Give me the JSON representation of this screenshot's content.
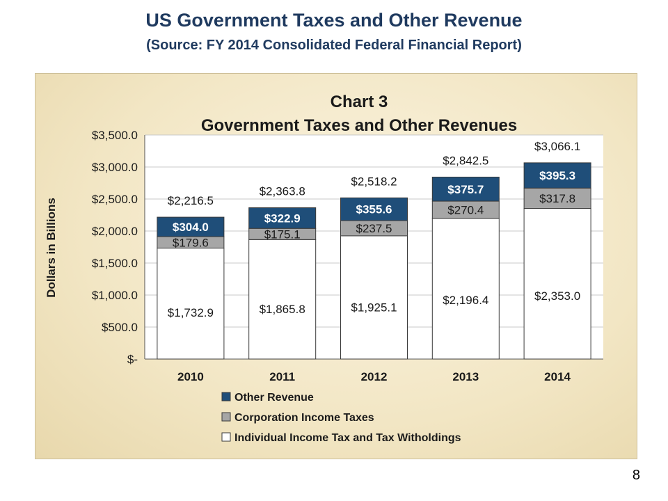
{
  "slide": {
    "title": "US Government Taxes and Other Revenue",
    "subtitle": "(Source: FY 2014 Consolidated Federal Financial Report)",
    "page_number": "8"
  },
  "colors": {
    "other": "#1f4e79",
    "corp": "#a6a6a6",
    "indiv": "#ffffff",
    "title_text": "#1f3a5f"
  },
  "chart_data": {
    "type": "bar",
    "stacked": true,
    "title": "Chart 3",
    "subtitle": "Government Taxes and Other Revenues",
    "ylabel": "Dollars in Billions",
    "xlabel": "",
    "ylim": [
      0,
      3500
    ],
    "yticks": [
      "$-",
      "$500.0",
      "$1,000.0",
      "$1,500.0",
      "$2,000.0",
      "$2,500.0",
      "$3,000.0",
      "$3,500.0"
    ],
    "ytick_values": [
      0,
      500,
      1000,
      1500,
      2000,
      2500,
      3000,
      3500
    ],
    "grid": true,
    "legend": "bottom",
    "categories": [
      "2010",
      "2011",
      "2012",
      "2013",
      "2014"
    ],
    "series": [
      {
        "name": "Individual Income Tax and Tax Witholdings",
        "values": [
          1732.9,
          1865.8,
          1925.1,
          2196.4,
          2353.0
        ],
        "labels": [
          "$1,732.9",
          "$1,865.8",
          "$1,925.1",
          "$2,196.4",
          "$2,353.0"
        ]
      },
      {
        "name": "Corporation Income Taxes",
        "values": [
          179.6,
          175.1,
          237.5,
          270.4,
          317.8
        ],
        "labels": [
          "$179.6",
          "$175.1",
          "$237.5",
          "$270.4",
          "$317.8"
        ]
      },
      {
        "name": "Other Revenue",
        "values": [
          304.0,
          322.9,
          355.6,
          375.7,
          395.3
        ],
        "labels": [
          "$304.0",
          "$322.9",
          "$355.6",
          "$375.7",
          "$395.3"
        ]
      }
    ],
    "totals": [
      "$2,216.5",
      "$2,363.8",
      "$2,518.2",
      "$2,842.5",
      "$3,066.1"
    ],
    "legend_order": [
      "Other Revenue",
      "Corporation Income Taxes",
      "Individual Income Tax and Tax Witholdings"
    ]
  }
}
